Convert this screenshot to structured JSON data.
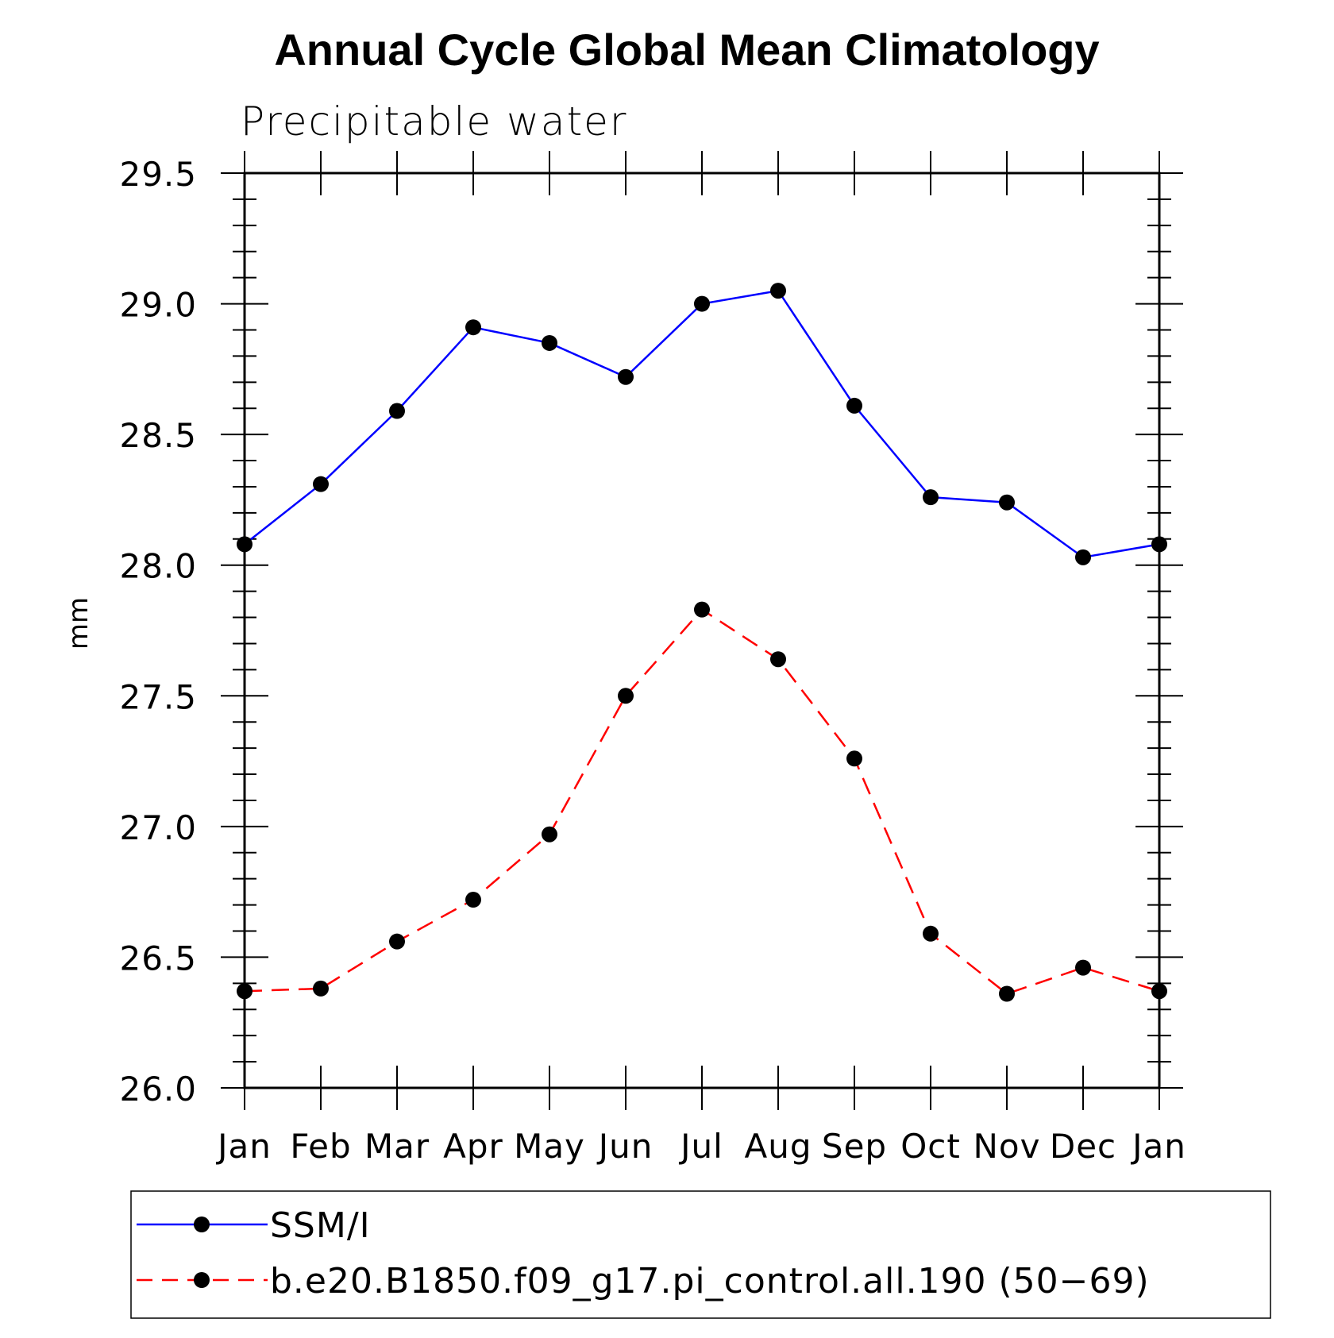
{
  "chart_data": {
    "type": "line",
    "title": "Annual Cycle Global Mean Climatology",
    "subtitle": "Precipitable water",
    "ylabel": "mm",
    "xlabel": "",
    "categories": [
      "Jan",
      "Feb",
      "Mar",
      "Apr",
      "May",
      "Jun",
      "Jul",
      "Aug",
      "Sep",
      "Oct",
      "Nov",
      "Dec",
      "Jan"
    ],
    "ylim": [
      26.0,
      29.5
    ],
    "yticks": [
      "26.0",
      "26.5",
      "27.0",
      "27.5",
      "28.0",
      "28.5",
      "29.0",
      "29.5"
    ],
    "grid": false,
    "legend_position": "bottom",
    "series": [
      {
        "name": "SSM/I",
        "color": "#0000ff",
        "line_style": "solid",
        "marker": "filled-circle",
        "values": [
          28.08,
          28.31,
          28.59,
          28.91,
          28.85,
          28.72,
          29.0,
          29.05,
          28.61,
          28.26,
          28.24,
          28.03,
          28.08
        ]
      },
      {
        "name": "b.e20.B1850.f09_g17.pi_control.all.190 (50−69)",
        "color": "#ff0000",
        "line_style": "dashed",
        "marker": "filled-circle",
        "values": [
          26.37,
          26.38,
          26.56,
          26.72,
          26.97,
          27.5,
          27.83,
          27.64,
          27.26,
          26.59,
          26.36,
          26.46,
          26.37
        ]
      }
    ]
  }
}
